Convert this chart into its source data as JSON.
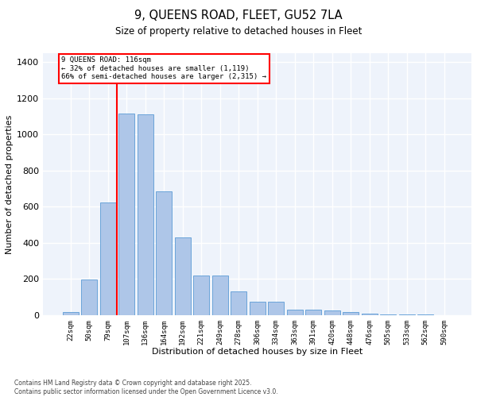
{
  "title_line1": "9, QUEENS ROAD, FLEET, GU52 7LA",
  "title_line2": "Size of property relative to detached houses in Fleet",
  "xlabel": "Distribution of detached houses by size in Fleet",
  "ylabel": "Number of detached properties",
  "categories": [
    "22sqm",
    "50sqm",
    "79sqm",
    "107sqm",
    "136sqm",
    "164sqm",
    "192sqm",
    "221sqm",
    "249sqm",
    "278sqm",
    "306sqm",
    "334sqm",
    "363sqm",
    "391sqm",
    "420sqm",
    "448sqm",
    "476sqm",
    "505sqm",
    "533sqm",
    "562sqm",
    "590sqm"
  ],
  "values": [
    15,
    195,
    625,
    1115,
    1110,
    685,
    430,
    220,
    220,
    130,
    75,
    75,
    30,
    30,
    25,
    15,
    10,
    5,
    3,
    2,
    0
  ],
  "bar_color": "#aec6e8",
  "bar_edge_color": "#5b9bd5",
  "bg_color": "#eef3fb",
  "grid_color": "#ffffff",
  "vline_x": 2.5,
  "vline_color": "red",
  "annotation_title": "9 QUEENS ROAD: 116sqm",
  "annotation_line1": "← 32% of detached houses are smaller (1,119)",
  "annotation_line2": "66% of semi-detached houses are larger (2,315) →",
  "footnote_line1": "Contains HM Land Registry data © Crown copyright and database right 2025.",
  "footnote_line2": "Contains public sector information licensed under the Open Government Licence v3.0.",
  "ylim_max": 1450,
  "yticks": [
    0,
    200,
    400,
    600,
    800,
    1000,
    1200,
    1400
  ]
}
